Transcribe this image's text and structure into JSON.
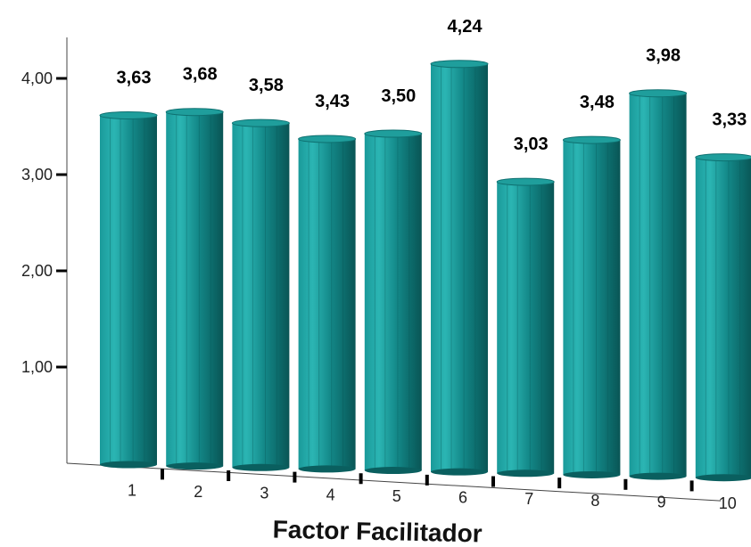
{
  "chart_data": {
    "type": "bar",
    "title": "",
    "xlabel": "Factor Facilitador",
    "ylabel": "",
    "categories": [
      "1",
      "2",
      "3",
      "4",
      "5",
      "6",
      "7",
      "8",
      "9",
      "10"
    ],
    "values": [
      3.63,
      3.68,
      3.58,
      3.43,
      3.5,
      4.24,
      3.03,
      3.48,
      3.98,
      3.33
    ],
    "value_labels": [
      "3,63",
      "3,68",
      "3,58",
      "3,43",
      "3,50",
      "4,24",
      "3,03",
      "3,48",
      "3,98",
      "3,33"
    ],
    "y_ticks": [
      1,
      2,
      3,
      4
    ],
    "y_tick_labels": [
      "1,00",
      "2,00",
      "3,00",
      "4,00"
    ],
    "ylim": [
      0,
      4.4
    ],
    "grid": false,
    "legend": "none",
    "bar_style": "3d-cylinder",
    "colors": {
      "bar_light": "#22a8a8",
      "bar_mid": "#128888",
      "bar_dark": "#0a5f5f",
      "axis": "#444444"
    }
  }
}
